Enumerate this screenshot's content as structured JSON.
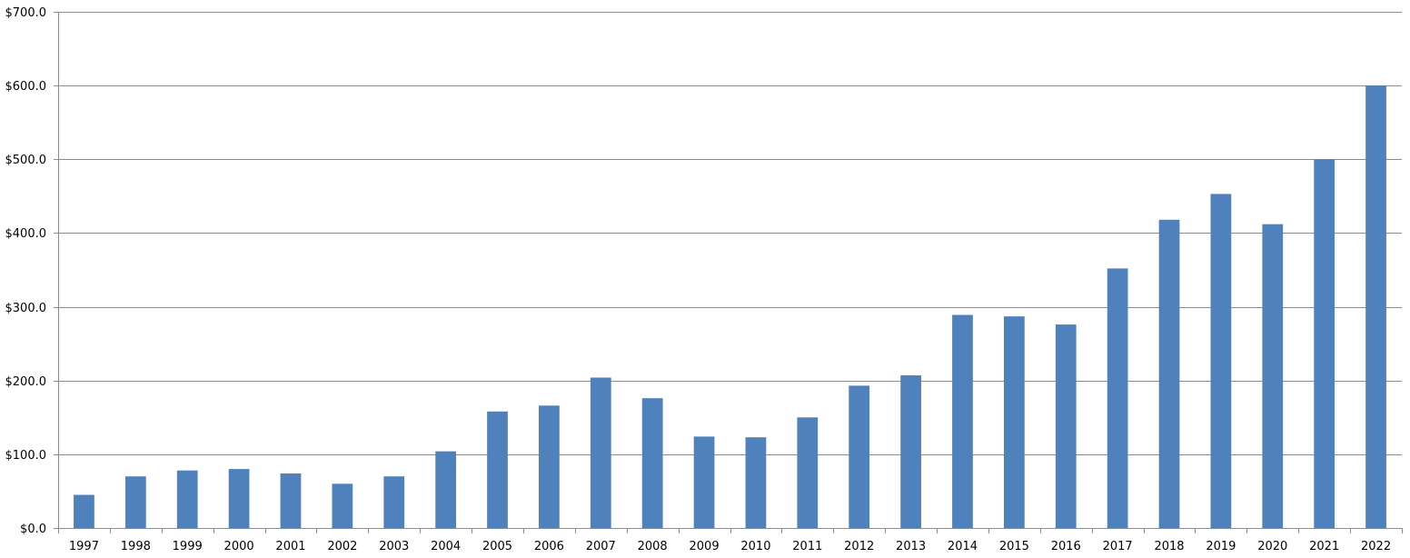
{
  "chart_data": {
    "type": "bar",
    "title": "",
    "xlabel": "",
    "ylabel": "",
    "categories": [
      "1997",
      "1998",
      "1999",
      "2000",
      "2001",
      "2002",
      "2003",
      "2004",
      "2005",
      "2006",
      "2007",
      "2008",
      "2009",
      "2010",
      "2011",
      "2012",
      "2013",
      "2014",
      "2015",
      "2016",
      "2017",
      "2018",
      "2019",
      "2020",
      "2021",
      "2022"
    ],
    "values": [
      45,
      70,
      78,
      80,
      74,
      60,
      70,
      104,
      158,
      166,
      204,
      176,
      124,
      123,
      150,
      193,
      207,
      289,
      287,
      276,
      352,
      418,
      453,
      412,
      500,
      600
    ],
    "ylim": [
      0,
      700
    ],
    "yticks": [
      0,
      100,
      200,
      300,
      400,
      500,
      600,
      700
    ],
    "ytick_labels": [
      "$0.0",
      "$100.0",
      "$200.0",
      "$300.0",
      "$400.0",
      "$500.0",
      "$600.0",
      "$700.0"
    ],
    "grid": "horizontal",
    "legend": "none",
    "bar_color": "#4f81bd"
  }
}
